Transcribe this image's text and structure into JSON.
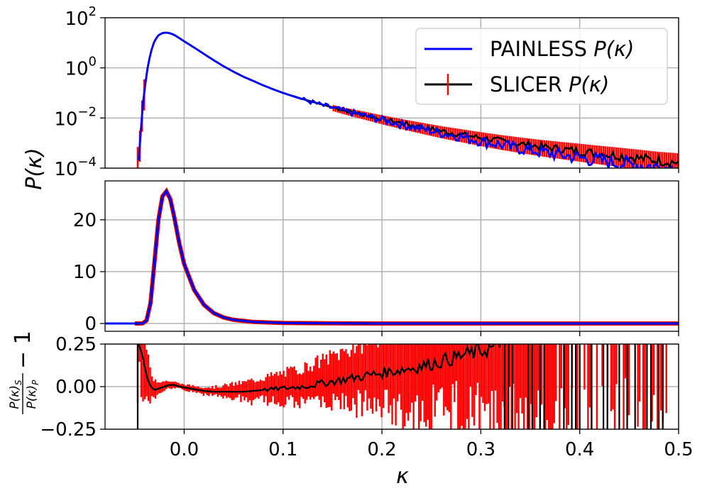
{
  "chart_data": [
    {
      "panel": "top",
      "type": "line",
      "yscale": "log",
      "xlim": [
        -0.08,
        0.5
      ],
      "ylim": [
        0.0001,
        100
      ],
      "grid": true,
      "x_ticks": [
        0.0,
        0.1,
        0.2,
        0.3,
        0.4,
        0.5
      ],
      "y_ticks": [
        0.0001,
        0.01,
        1,
        100
      ],
      "y_tick_labels": [
        {
          "base": "10",
          "exp": "−4"
        },
        {
          "base": "10",
          "exp": "−2"
        },
        {
          "base": "10",
          "exp": "0"
        },
        {
          "base": "10",
          "exp": "2"
        }
      ],
      "legend": {
        "position": "top-right",
        "entries": [
          {
            "label": "PAINLESS",
            "math": "P(κ)",
            "color": "#0000ff",
            "style": "line"
          },
          {
            "label": "SLICER",
            "math": "P(κ)",
            "color": "#000000",
            "error_color": "#ff0000",
            "style": "errorbar"
          }
        ]
      },
      "series": [
        {
          "name": "PAINLESS P(κ)",
          "color": "#0000ff",
          "x": [
            -0.046,
            -0.042,
            -0.038,
            -0.034,
            -0.03,
            -0.026,
            -0.022,
            -0.018,
            -0.014,
            -0.01,
            -0.005,
            0.0,
            0.01,
            0.02,
            0.03,
            0.04,
            0.05,
            0.06,
            0.07,
            0.08,
            0.09,
            0.1,
            0.12,
            0.14,
            0.16,
            0.18,
            0.2,
            0.22,
            0.24,
            0.26,
            0.28,
            0.3,
            0.32,
            0.34,
            0.36,
            0.38,
            0.4,
            0.42,
            0.44,
            0.46,
            0.48,
            0.5
          ],
          "y": [
            0.0002,
            0.03,
            0.6,
            4.0,
            12.0,
            20.0,
            24.5,
            25.5,
            24.0,
            20.5,
            15.5,
            11.5,
            6.5,
            3.6,
            2.0,
            1.15,
            0.7,
            0.44,
            0.3,
            0.2,
            0.14,
            0.1,
            0.055,
            0.032,
            0.02,
            0.013,
            0.0085,
            0.0055,
            0.0037,
            0.0025,
            0.0018,
            0.0012,
            0.00085,
            0.0006,
            0.00045,
            0.00034,
            0.00026,
            0.0002,
            0.00016,
            0.00013,
            0.00011,
            0.0001
          ]
        },
        {
          "name": "SLICER P(κ)",
          "color": "#000000",
          "error_color": "#ff0000",
          "x": [
            -0.046,
            -0.042,
            -0.038,
            -0.034,
            -0.03,
            -0.026,
            -0.022,
            -0.018,
            -0.014,
            -0.01,
            -0.005,
            0.0,
            0.01,
            0.02,
            0.03,
            0.04,
            0.05,
            0.06,
            0.07,
            0.08,
            0.09,
            0.1,
            0.12,
            0.14,
            0.16,
            0.18,
            0.2,
            0.22,
            0.24,
            0.26,
            0.28,
            0.3,
            0.32,
            0.34,
            0.36,
            0.38,
            0.4,
            0.42,
            0.44,
            0.46,
            0.48,
            0.5
          ],
          "y": [
            0.0002,
            0.03,
            0.6,
            4.0,
            12.0,
            20.0,
            24.5,
            25.5,
            24.0,
            20.5,
            15.5,
            11.5,
            6.5,
            3.6,
            2.0,
            1.15,
            0.7,
            0.44,
            0.3,
            0.2,
            0.14,
            0.1,
            0.057,
            0.034,
            0.021,
            0.014,
            0.0092,
            0.0062,
            0.0043,
            0.003,
            0.0022,
            0.0016,
            0.0012,
            0.00092,
            0.00072,
            0.00058,
            0.00047,
            0.00038,
            0.00031,
            0.00025,
            0.0002,
            0.00017
          ]
        }
      ]
    },
    {
      "panel": "middle",
      "type": "line",
      "yscale": "linear",
      "xlim": [
        -0.08,
        0.5
      ],
      "ylim": [
        -1.5,
        27.5
      ],
      "grid": true,
      "x_ticks": [
        0.0,
        0.1,
        0.2,
        0.3,
        0.4,
        0.5
      ],
      "y_ticks": [
        0,
        10,
        20
      ],
      "y_tick_labels": [
        "0",
        "10",
        "20"
      ],
      "series": [
        {
          "name": "SLICER P(κ)",
          "color": "#000000",
          "error_color": "#ff0000",
          "x": [
            -0.05,
            -0.046,
            -0.042,
            -0.038,
            -0.034,
            -0.03,
            -0.026,
            -0.022,
            -0.018,
            -0.014,
            -0.01,
            -0.005,
            0.0,
            0.01,
            0.02,
            0.03,
            0.04,
            0.05,
            0.07,
            0.1,
            0.15,
            0.2,
            0.3,
            0.4,
            0.5
          ],
          "y": [
            0.0,
            0.0,
            0.03,
            0.6,
            4.0,
            12.0,
            20.0,
            24.5,
            25.5,
            24.0,
            20.5,
            15.5,
            11.5,
            6.5,
            3.6,
            2.0,
            1.15,
            0.7,
            0.3,
            0.1,
            0.03,
            0.01,
            0.0,
            0.0,
            0.0
          ]
        },
        {
          "name": "PAINLESS P(κ)",
          "color": "#0000ff",
          "x": [
            -0.08,
            -0.05,
            -0.046,
            -0.042,
            -0.038,
            -0.034,
            -0.03,
            -0.026,
            -0.022,
            -0.018,
            -0.014,
            -0.01,
            -0.005,
            0.0,
            0.01,
            0.02,
            0.03,
            0.04,
            0.05,
            0.07,
            0.1,
            0.15,
            0.2,
            0.3,
            0.4,
            0.5
          ],
          "y": [
            0.0,
            0.0,
            0.0,
            0.03,
            0.6,
            4.0,
            12.0,
            20.0,
            24.5,
            25.5,
            24.0,
            20.5,
            15.5,
            11.5,
            6.5,
            3.6,
            2.0,
            1.15,
            0.7,
            0.3,
            0.1,
            0.03,
            0.01,
            0.0,
            0.0,
            0.0
          ]
        }
      ]
    },
    {
      "panel": "bottom",
      "type": "line",
      "yscale": "linear",
      "xlim": [
        -0.08,
        0.5
      ],
      "ylim": [
        -0.25,
        0.25
      ],
      "grid": true,
      "x_ticks": [
        0.0,
        0.1,
        0.2,
        0.3,
        0.4,
        0.5
      ],
      "x_tick_labels": [
        "0.0",
        "0.1",
        "0.2",
        "0.3",
        "0.4",
        "0.5"
      ],
      "y_ticks": [
        -0.25,
        0.0,
        0.25
      ],
      "y_tick_labels": [
        "−0.25",
        "0.00",
        "0.25"
      ],
      "series": [
        {
          "name": "ratio",
          "color": "#000000",
          "error_color": "#ff0000",
          "x": [
            -0.046,
            -0.042,
            -0.038,
            -0.034,
            -0.03,
            -0.025,
            -0.02,
            -0.015,
            -0.01,
            -0.005,
            0.0,
            0.01,
            0.02,
            0.03,
            0.04,
            0.05,
            0.06,
            0.08,
            0.1,
            0.12,
            0.14,
            0.16,
            0.18,
            0.2,
            0.22,
            0.24,
            0.26,
            0.28,
            0.3,
            0.32
          ],
          "y": [
            0.25,
            0.18,
            0.06,
            0.0,
            -0.02,
            -0.01,
            0.0,
            0.01,
            0.01,
            0.0,
            -0.005,
            -0.015,
            -0.025,
            -0.03,
            -0.03,
            -0.03,
            -0.03,
            -0.02,
            -0.01,
            0.0,
            0.02,
            0.04,
            0.06,
            0.08,
            0.1,
            0.12,
            0.15,
            0.18,
            0.21,
            0.24
          ],
          "err": [
            0.3,
            0.25,
            0.16,
            0.1,
            0.07,
            0.05,
            0.035,
            0.025,
            0.02,
            0.02,
            0.02,
            0.02,
            0.025,
            0.03,
            0.04,
            0.05,
            0.06,
            0.08,
            0.1,
            0.12,
            0.15,
            0.18,
            0.22,
            0.26,
            0.3,
            0.34,
            0.38,
            0.42,
            0.46,
            0.5
          ]
        }
      ]
    }
  ],
  "axis_labels": {
    "xlabel": "κ",
    "ylabel_shared": "P(κ)",
    "ylabel_ratio_num": "P(κ)",
    "ylabel_ratio_num_sub": "S",
    "ylabel_ratio_den": "P(κ)",
    "ylabel_ratio_den_sub": "P",
    "ylabel_ratio_suffix": "− 1"
  }
}
